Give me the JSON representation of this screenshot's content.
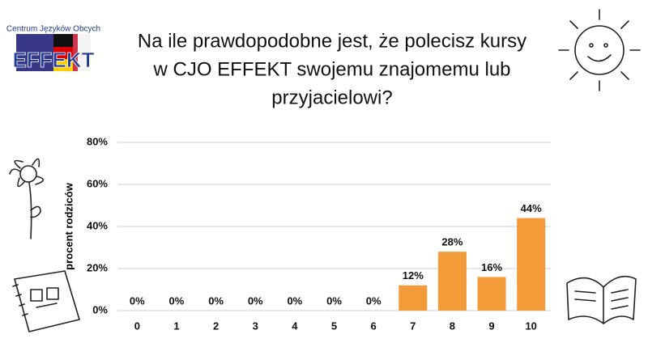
{
  "logo": {
    "text": "Centrum Języków Obcych",
    "name": "EFFEKT"
  },
  "chart_data": {
    "type": "bar",
    "title_lines": [
      "Na ile prawdopodobne jest, że polecisz kursy",
      "w CJO EFFEKT swojemu znajomemu lub",
      "przyjacielowi?"
    ],
    "y_label": "procent rodziców",
    "categories": [
      "0",
      "1",
      "2",
      "3",
      "4",
      "5",
      "6",
      "7",
      "8",
      "9",
      "10"
    ],
    "values": [
      0,
      0,
      0,
      0,
      0,
      0,
      0,
      12,
      28,
      16,
      44
    ],
    "value_labels": [
      "0%",
      "0%",
      "0%",
      "0%",
      "0%",
      "0%",
      "0%",
      "12%",
      "28%",
      "16%",
      "44%"
    ],
    "color": "#f29b38",
    "ylim": [
      0,
      80
    ],
    "yticks": [
      {
        "value": 0,
        "label": "0%"
      },
      {
        "value": 20,
        "label": "20%"
      },
      {
        "value": 40,
        "label": "40%"
      },
      {
        "value": 60,
        "label": "60%"
      },
      {
        "value": 80,
        "label": "80%"
      }
    ],
    "grid": true
  }
}
